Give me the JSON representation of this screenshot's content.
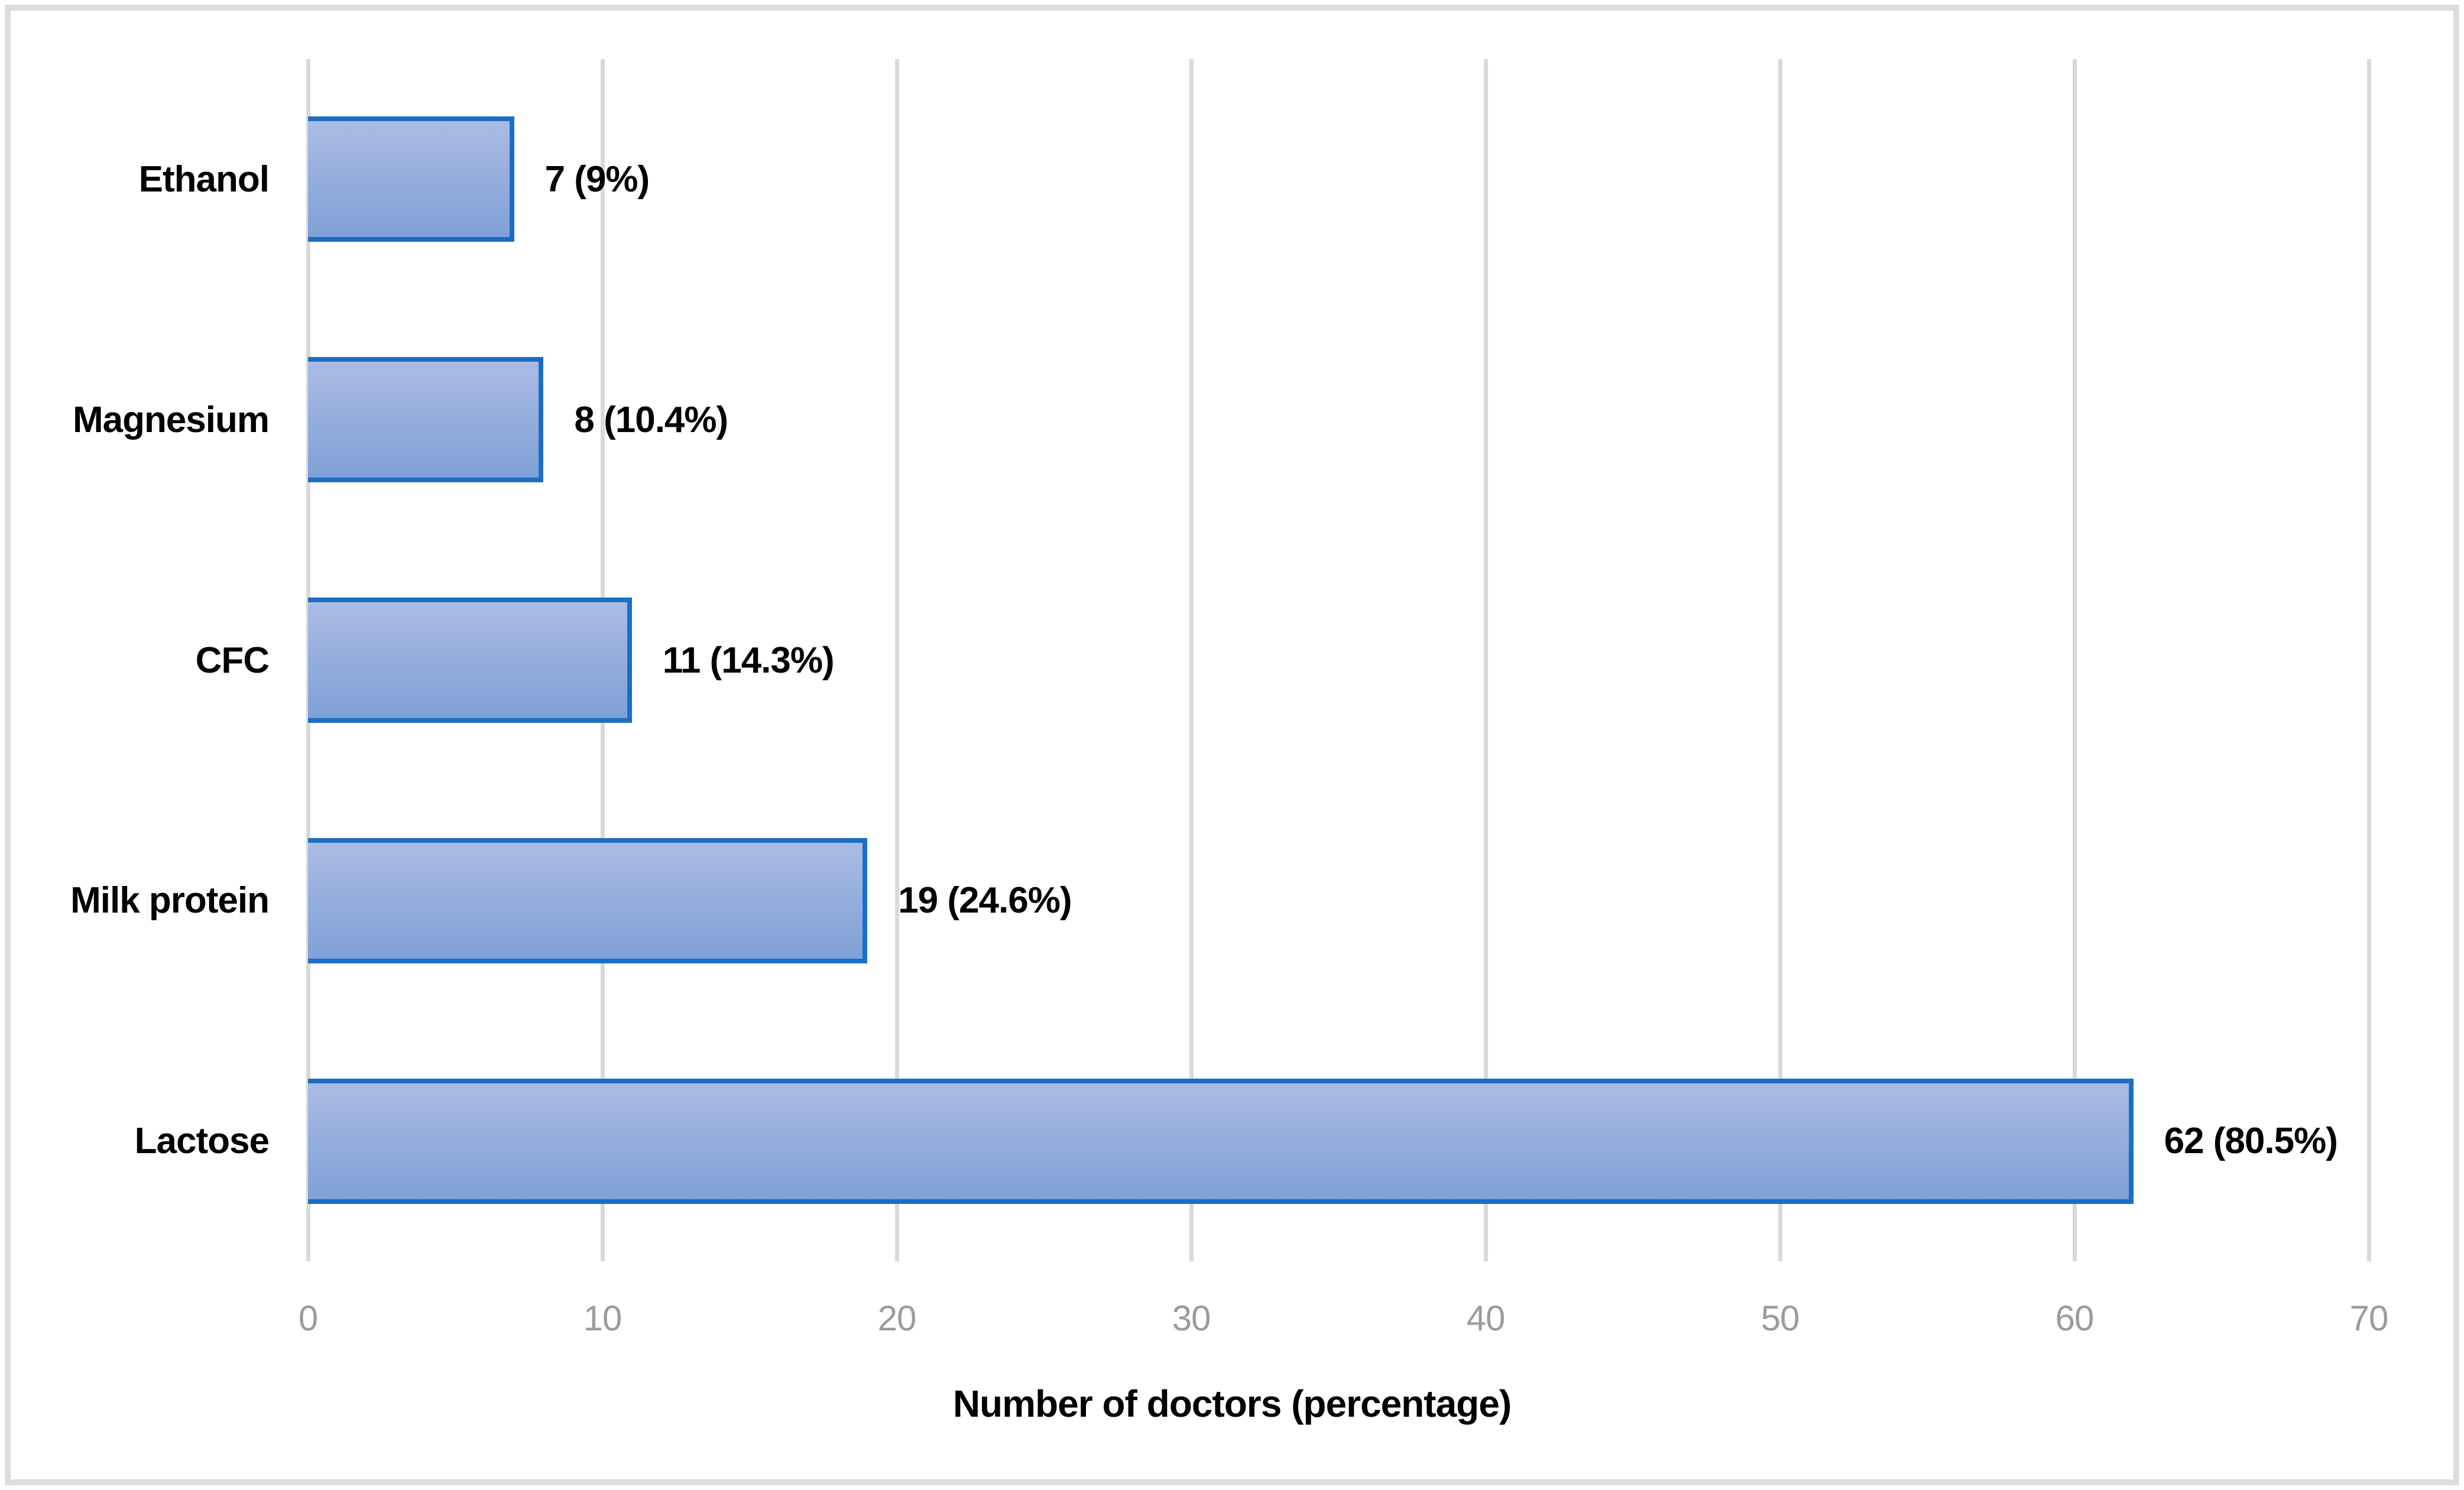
{
  "figure": {
    "background_color": "#ffffff",
    "frame_border_color": "#dcdcdc"
  },
  "chart_data": {
    "type": "bar",
    "orientation": "horizontal",
    "title": "",
    "xlabel": "Number of doctors (percentage)",
    "ylabel": "",
    "categories": [
      "Ethanol",
      "Magnesium",
      "CFC",
      "Milk protein",
      "Lactose"
    ],
    "values": [
      7,
      8,
      11,
      19,
      62
    ],
    "percentages": [
      9,
      10.4,
      14.3,
      24.6,
      80.5
    ],
    "value_labels": [
      "7 (9%)",
      "8 (10.4%)",
      "11 (14.3%)",
      "19 (24.6%)",
      "62 (80.5%)"
    ],
    "xlim": [
      0,
      70
    ],
    "xticks": [
      "0",
      "10",
      "20",
      "30",
      "40",
      "50",
      "60",
      "70"
    ],
    "grid": true,
    "legend_position": "none",
    "colors": {
      "bar_fill_top": "#aabbe4",
      "bar_fill_bottom": "#7fa0d7",
      "bar_border": "#1b6ec4",
      "gridline": "#d9d9d9",
      "tick_label": "#9b9b9b",
      "axis_title": "#000000",
      "category_label": "#000000",
      "value_label": "#000000"
    }
  }
}
